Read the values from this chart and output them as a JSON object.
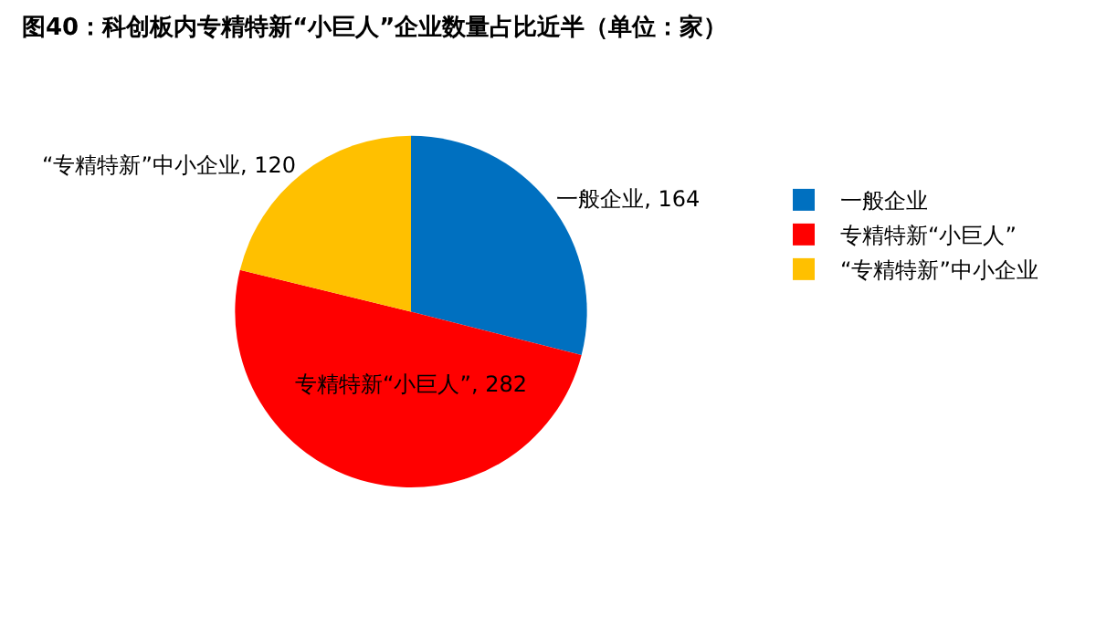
{
  "chart_data": {
    "type": "pie",
    "title": "图40：科创板内专精特新“小巨人”企业数量占比近半（单位：家）",
    "categories": [
      "一般企业",
      "专精特新“小巨人”",
      "“专精特新”中小企业"
    ],
    "values": [
      164,
      282,
      120
    ],
    "colors": [
      "#0070c0",
      "#ff0000",
      "#ffc000"
    ],
    "value_labels": [
      "一般企业, 164",
      "专精特新“小巨人”, 282",
      "“专精特新”中小企业, 120"
    ],
    "legend": "right"
  }
}
